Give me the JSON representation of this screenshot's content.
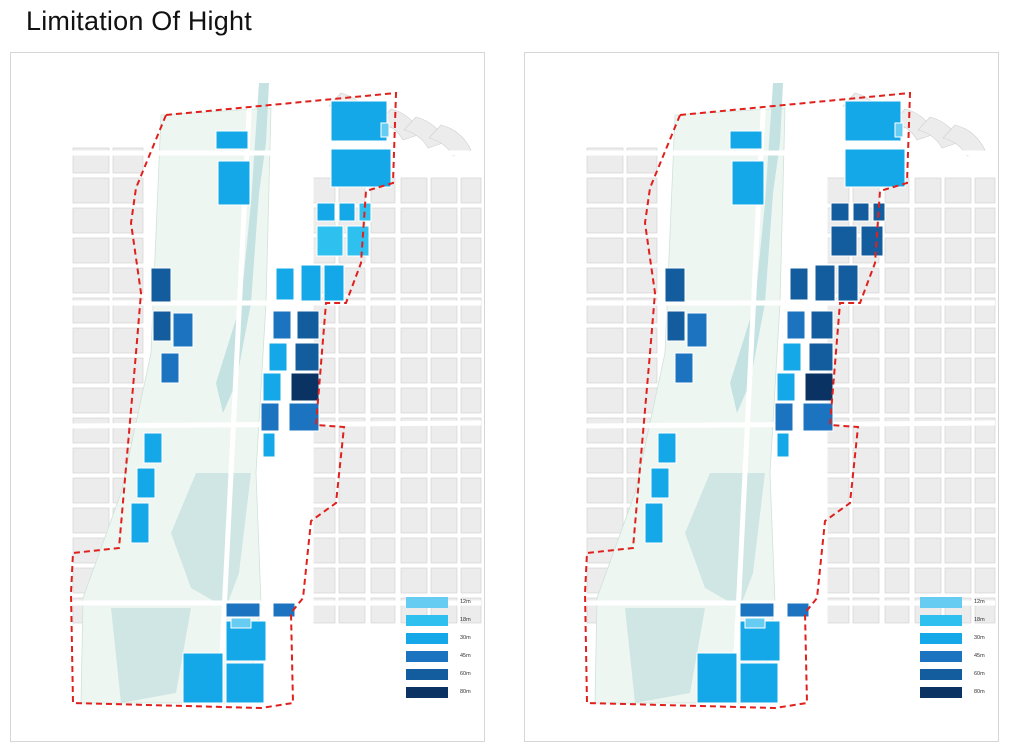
{
  "page": {
    "title": "Limitation Of Hight"
  },
  "legend": {
    "items": [
      {
        "label": "12m",
        "color": "#66ccf2"
      },
      {
        "label": "18m",
        "color": "#2ec1f0"
      },
      {
        "label": "30m",
        "color": "#14a8e8"
      },
      {
        "label": "45m",
        "color": "#1c74c0"
      },
      {
        "label": "60m",
        "color": "#135c9e"
      },
      {
        "label": "80m",
        "color": "#0a3262"
      }
    ]
  },
  "maps": [
    {
      "name": "map-left",
      "scheme": "A"
    },
    {
      "name": "map-right",
      "scheme": "B"
    }
  ]
}
